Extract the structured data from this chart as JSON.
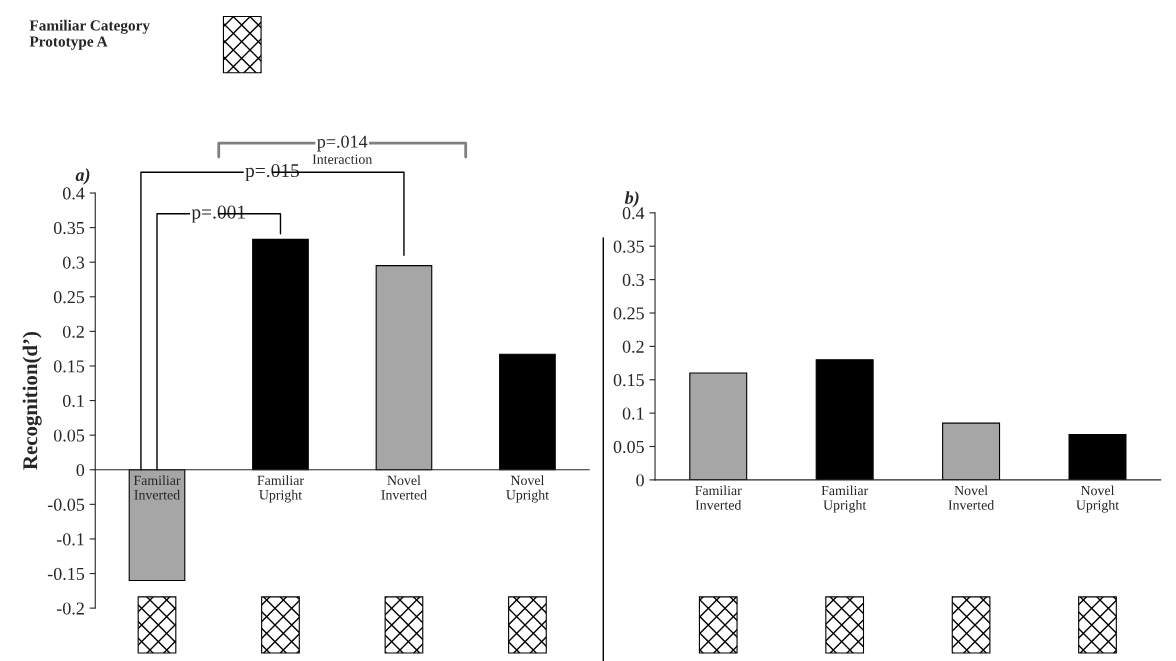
{
  "chart_data": [
    {
      "type": "bar",
      "title": "a)",
      "ylabel": "Recognition(d’)",
      "categories": [
        "Familiar\nInverted",
        "Familiar\nUpright",
        "Novel\nInverted",
        "Novel\nUpright"
      ],
      "values": [
        -0.16,
        0.333,
        0.295,
        0.167
      ],
      "colors": [
        "#a6a6a6",
        "#000000",
        "#a6a6a6",
        "#000000"
      ],
      "ylim": [
        -0.2,
        0.4
      ],
      "yticks": [
        -0.2,
        -0.15,
        -0.1,
        -0.05,
        0,
        0.05,
        0.1,
        0.15,
        0.2,
        0.25,
        0.3,
        0.35,
        0.4
      ],
      "grid": false,
      "legend": false,
      "annotations": [
        "Familiar Category\nPrototype A",
        "p=.001",
        "p=.015",
        "p=.014",
        "Interaction"
      ]
    },
    {
      "type": "bar",
      "title": "b)",
      "categories": [
        "Familiar\nInverted",
        "Familiar\nUpright",
        "Novel\nInverted",
        "Novel\nUpright"
      ],
      "values": [
        0.16,
        0.18,
        0.085,
        0.068
      ],
      "colors": [
        "#a6a6a6",
        "#000000",
        "#a6a6a6",
        "#000000"
      ],
      "ylim": [
        0,
        0.4
      ],
      "yticks": [
        0,
        0.05,
        0.1,
        0.15,
        0.2,
        0.25,
        0.3,
        0.35,
        0.4
      ],
      "grid": false,
      "legend": false
    }
  ]
}
